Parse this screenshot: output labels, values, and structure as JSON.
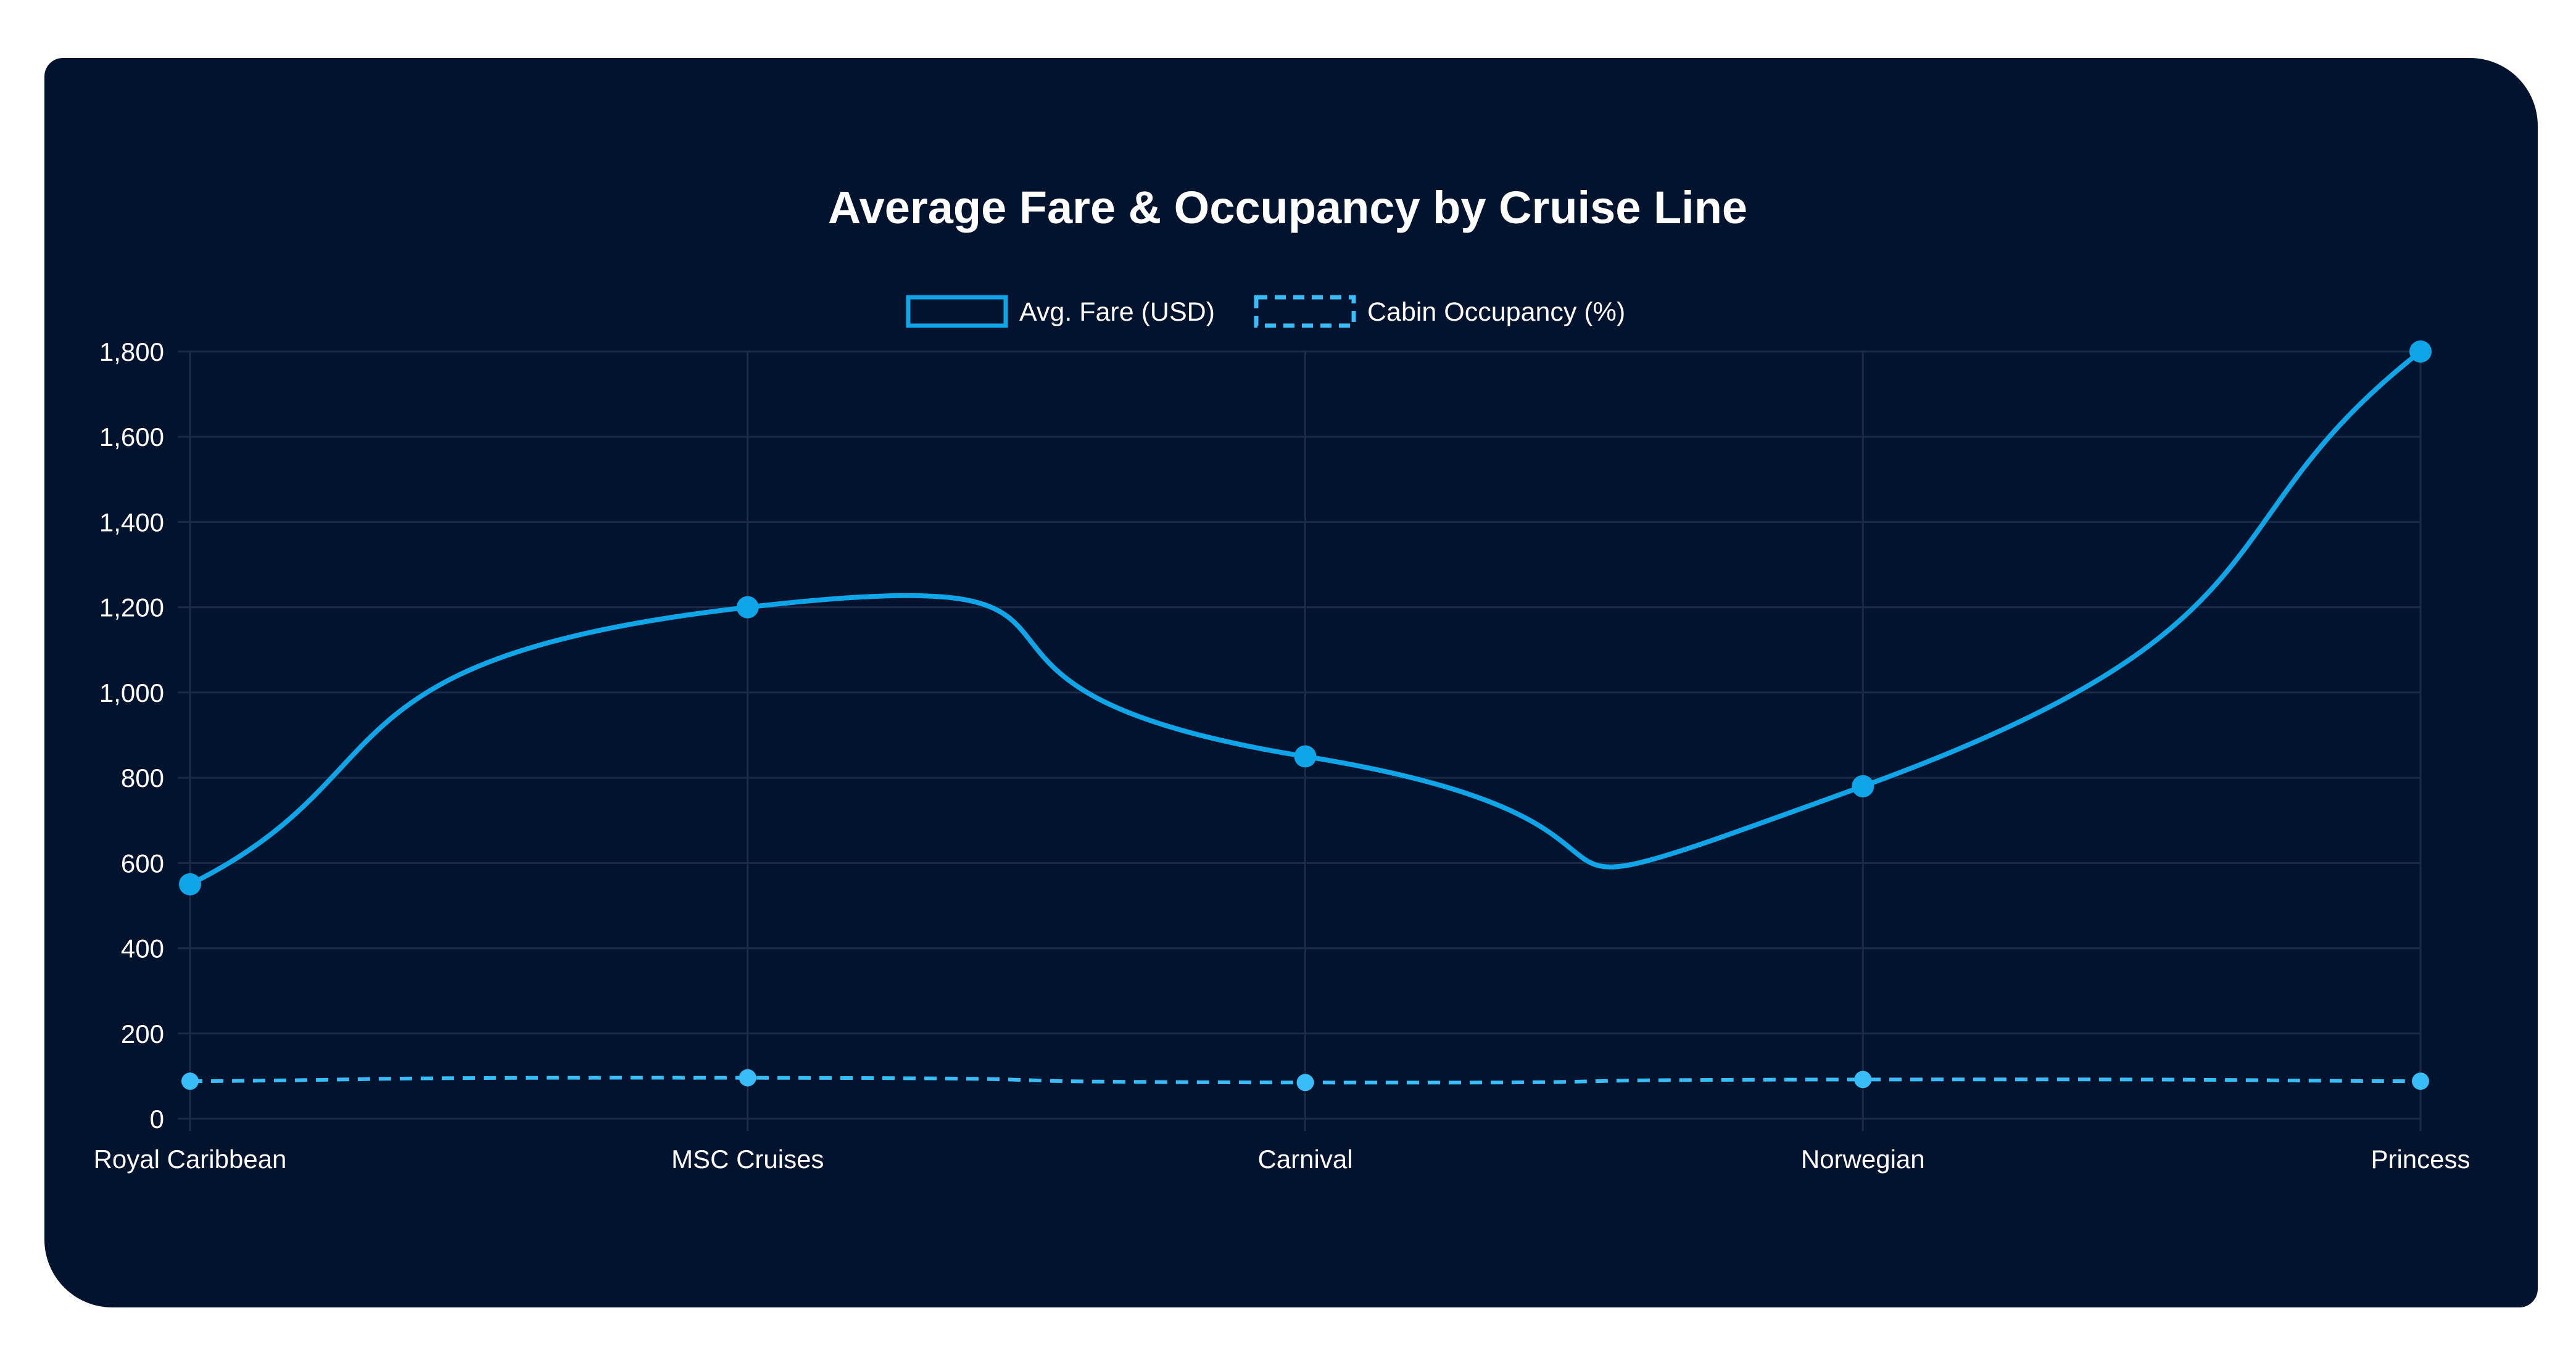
{
  "chart_data": {
    "type": "line",
    "title": "Average Fare & Occupancy by Cruise Line",
    "categories": [
      "Royal Caribbean",
      "MSC Cruises",
      "Carnival",
      "Norwegian",
      "Princess"
    ],
    "series": [
      {
        "name": "Avg. Fare (USD)",
        "values": [
          550,
          1200,
          850,
          780,
          1800
        ],
        "color": "#0ea5e9",
        "style": "solid"
      },
      {
        "name": "Cabin Occupancy (%)",
        "values": [
          88,
          96,
          85,
          92,
          88
        ],
        "color": "#38bdf8",
        "style": "dashed"
      }
    ],
    "ylim": [
      0,
      1800
    ],
    "yticks": [
      "0",
      "200",
      "400",
      "600",
      "800",
      "1,000",
      "1,200",
      "1,400",
      "1,600",
      "1,800"
    ],
    "ytick_values": [
      0,
      200,
      400,
      600,
      800,
      1000,
      1200,
      1400,
      1600,
      1800
    ],
    "grid": true,
    "legend": "top-center"
  },
  "colors": {
    "background": "#02132e",
    "grid": "#1c2b45"
  }
}
